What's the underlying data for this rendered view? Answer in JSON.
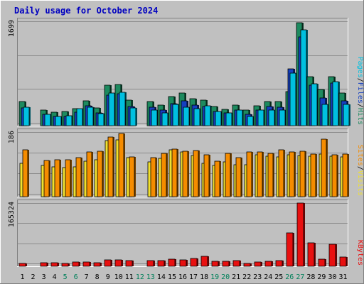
{
  "chart_data": {
    "type": "bar",
    "title": "Daily usage for October 2024",
    "categories": [
      "1",
      "2",
      "3",
      "4",
      "5",
      "6",
      "7",
      "8",
      "9",
      "10",
      "11",
      "12",
      "13",
      "14",
      "15",
      "16",
      "17",
      "18",
      "19",
      "20",
      "21",
      "22",
      "23",
      "24",
      "25",
      "26",
      "27",
      "28",
      "29",
      "30",
      "31"
    ],
    "weekend_days": [
      "5",
      "6",
      "12",
      "13",
      "19",
      "20",
      "26",
      "27"
    ],
    "panels": [
      {
        "name": "hits-files-pages",
        "ymax_label": "1699",
        "ylim": [
          0,
          1699
        ],
        "legend": [
          {
            "label": "Pages",
            "color": "#00c0e0"
          },
          {
            "label": "Files",
            "color": "#1540c0"
          },
          {
            "label": "Hits",
            "color": "#1d8a5f"
          }
        ],
        "separator": "/",
        "series": [
          {
            "name": "Hits",
            "color": "#1d8a5f",
            "values": [
              390,
              0,
              250,
              220,
              230,
              280,
              410,
              290,
              660,
              670,
              420,
              0,
              390,
              330,
              470,
              530,
              440,
              420,
              310,
              270,
              340,
              260,
              320,
              390,
              390,
              560,
              1680,
              800,
              590,
              800,
              530
            ]
          },
          {
            "name": "Files",
            "color": "#1540c0",
            "values": [
              290,
              0,
              180,
              150,
              150,
              220,
              320,
              210,
              500,
              520,
              310,
              0,
              300,
              250,
              360,
              400,
              340,
              310,
              230,
              210,
              260,
              190,
              250,
              310,
              300,
              920,
              1450,
              660,
              450,
              690,
              400
            ]
          },
          {
            "name": "Pages",
            "color": "#00c0e0",
            "values": [
              300,
              0,
              190,
              150,
              160,
              280,
              300,
              200,
              530,
              540,
              290,
              0,
              250,
              210,
              350,
              300,
              280,
              320,
              230,
              210,
              260,
              150,
              250,
              250,
              260,
              850,
              1560,
              680,
              350,
              720,
              350
            ]
          }
        ]
      },
      {
        "name": "visits-sites",
        "ymax_label": "186",
        "ylim": [
          0,
          186
        ],
        "legend": [
          {
            "label": "Sites",
            "color": "#f58c00"
          },
          {
            "label": "Visits",
            "color": "#f0e030"
          }
        ],
        "separator": "/",
        "series": [
          {
            "name": "Visits",
            "color": "#f0e030",
            "values": [
              96,
              0,
              90,
              86,
              83,
              86,
              102,
              107,
              162,
              164,
              112,
              0,
              101,
              110,
              135,
              128,
              119,
              96,
              89,
              100,
              91,
              91,
              120,
              117,
              114,
              120,
              118,
              117,
              122,
              117,
              114
            ]
          },
          {
            "name": "Sites",
            "color": "#f58c00",
            "values": [
              134,
              0,
              105,
              106,
              107,
              113,
              128,
              130,
              172,
              181,
              115,
              0,
              112,
              124,
              137,
              130,
              132,
              120,
              103,
              125,
              113,
              128,
              128,
              125,
              135,
              129,
              131,
              122,
              165,
              120,
              122
            ]
          }
        ]
      },
      {
        "name": "kbytes",
        "ymax_label": "165324",
        "ylim": [
          0,
          165324
        ],
        "legend": [
          {
            "label": "KBytes",
            "color": "#e81010"
          }
        ],
        "separator": "",
        "series": [
          {
            "name": "KBytes",
            "color": "#e81010",
            "values": [
              7000,
              0,
              9000,
              9000,
              7000,
              12000,
              12000,
              10000,
              16000,
              17000,
              15000,
              0,
              15000,
              15000,
              19000,
              17000,
              20000,
              26000,
              13000,
              13000,
              15000,
              7000,
              12000,
              13000,
              14000,
              87000,
              165000,
              62000,
              19000,
              58000,
              25000
            ]
          }
        ]
      }
    ]
  }
}
